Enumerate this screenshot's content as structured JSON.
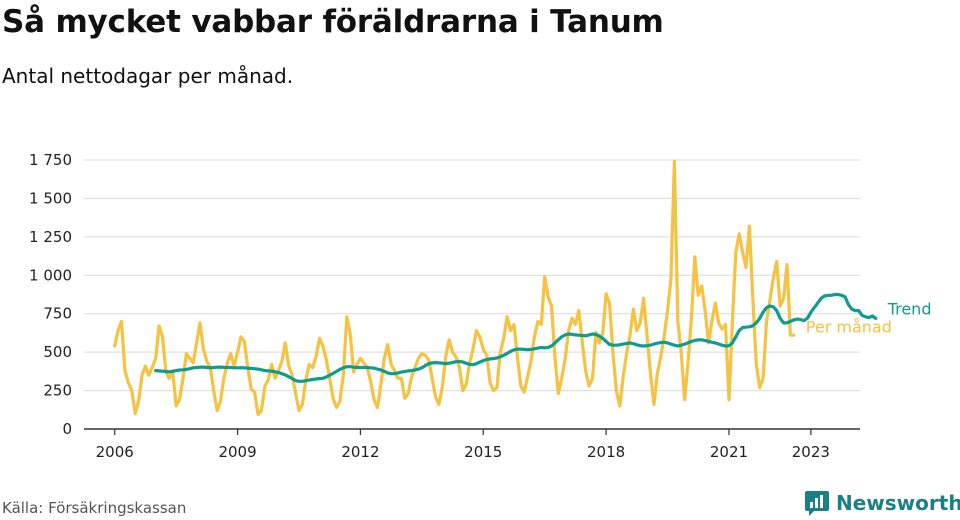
{
  "header": {
    "title": "Så mycket vabbar föräldrarna i Tanum",
    "subtitle": "Antal nettodagar per månad."
  },
  "footer": {
    "source": "Källa: Försäkringskassan",
    "brand": "Newsworthy",
    "brand_icon": "bar-chart-logo-icon"
  },
  "colors": {
    "monthly": "#f5c242",
    "trend": "#0f9b8e",
    "grid": "#d9d9d9",
    "axis": "#333333",
    "brand": "#1a7f86"
  },
  "chart_data": {
    "type": "line",
    "ylim": [
      0,
      1750
    ],
    "yticks": [
      0,
      250,
      500,
      750,
      1000,
      1250,
      1500,
      1750
    ],
    "ytick_labels": [
      "0",
      "250",
      "500",
      "750",
      "1 000",
      "1 250",
      "1 500",
      "1 750"
    ],
    "xticks": [
      2006,
      2009,
      2012,
      2015,
      2018,
      2021,
      2023
    ],
    "xtick_labels": [
      "2006",
      "2009",
      "2012",
      "2015",
      "2018",
      "2021",
      "2023"
    ],
    "xlim": [
      2005.25,
      2024.2
    ],
    "grid": true,
    "series": [
      {
        "name": "Per månad",
        "color": "#f5c242",
        "x_start": "2006-01",
        "values": [
          540,
          640,
          700,
          380,
          300,
          250,
          100,
          180,
          350,
          410,
          350,
          400,
          460,
          670,
          600,
          370,
          330,
          380,
          150,
          190,
          330,
          490,
          460,
          430,
          560,
          690,
          520,
          440,
          400,
          250,
          120,
          180,
          330,
          430,
          490,
          410,
          500,
          600,
          570,
          400,
          260,
          240,
          95,
          120,
          280,
          320,
          420,
          330,
          380,
          440,
          560,
          410,
          350,
          230,
          120,
          160,
          320,
          420,
          400,
          470,
          590,
          540,
          450,
          330,
          200,
          140,
          180,
          350,
          730,
          620,
          370,
          420,
          460,
          430,
          400,
          310,
          190,
          140,
          290,
          460,
          550,
          420,
          380,
          330,
          330,
          200,
          230,
          340,
          400,
          460,
          490,
          480,
          450,
          330,
          210,
          160,
          270,
          470,
          580,
          500,
          470,
          400,
          250,
          290,
          430,
          520,
          640,
          600,
          520,
          480,
          300,
          250,
          270,
          500,
          590,
          730,
          640,
          680,
          470,
          280,
          240,
          340,
          440,
          600,
          700,
          680,
          990,
          860,
          800,
          470,
          230,
          330,
          460,
          640,
          720,
          680,
          770,
          570,
          380,
          280,
          330,
          630,
          560,
          620,
          880,
          820,
          500,
          250,
          150,
          340,
          490,
          610,
          780,
          640,
          690,
          850,
          600,
          360,
          160,
          360,
          470,
          600,
          770,
          970,
          1740,
          700,
          500,
          190,
          430,
          720,
          1120,
          870,
          930,
          770,
          560,
          700,
          820,
          690,
          650,
          680,
          190,
          700,
          1150,
          1270,
          1150,
          1050,
          1320,
          850,
          420,
          270,
          330,
          700,
          840,
          980,
          1090,
          800,
          850,
          1070,
          610,
          610
        ],
        "label": "Per månad"
      },
      {
        "name": "Trend",
        "color": "#0f9b8e",
        "x_start": "2007-01",
        "values": [
          380,
          378,
          376,
          374,
          372,
          375,
          380,
          384,
          385,
          388,
          392,
          398,
          400,
          402,
          403,
          401,
          398,
          400,
          402,
          403,
          401,
          400,
          400,
          398,
          398,
          399,
          398,
          396,
          394,
          392,
          390,
          385,
          380,
          378,
          376,
          372,
          368,
          360,
          352,
          340,
          328,
          315,
          310,
          310,
          314,
          318,
          322,
          325,
          328,
          330,
          338,
          350,
          362,
          375,
          388,
          398,
          405,
          405,
          402,
          400,
          400,
          400,
          400,
          398,
          396,
          390,
          384,
          375,
          365,
          360,
          360,
          365,
          370,
          375,
          378,
          380,
          384,
          390,
          398,
          412,
          425,
          430,
          432,
          430,
          428,
          425,
          428,
          432,
          438,
          440,
          436,
          428,
          420,
          418,
          425,
          435,
          445,
          452,
          456,
          458,
          462,
          470,
          480,
          492,
          505,
          515,
          520,
          520,
          518,
          516,
          518,
          522,
          526,
          530,
          528,
          530,
          540,
          560,
          580,
          600,
          612,
          618,
          616,
          612,
          610,
          608,
          606,
          612,
          618,
          615,
          605,
          590,
          570,
          550,
          545,
          545,
          548,
          552,
          556,
          560,
          555,
          548,
          542,
          540,
          542,
          546,
          552,
          558,
          562,
          565,
          560,
          552,
          545,
          540,
          545,
          552,
          560,
          570,
          576,
          580,
          580,
          575,
          570,
          565,
          560,
          552,
          545,
          540,
          542,
          560,
          600,
          640,
          660,
          662,
          665,
          672,
          690,
          720,
          760,
          790,
          800,
          795,
          770,
          720,
          690,
          690,
          700,
          710,
          715,
          712,
          705,
          720,
          760,
          790,
          820,
          850,
          865,
          870,
          870,
          875,
          875,
          870,
          860,
          810,
          780,
          770,
          770,
          740,
          730,
          725,
          735,
          720
        ],
        "label": "Trend"
      }
    ]
  }
}
